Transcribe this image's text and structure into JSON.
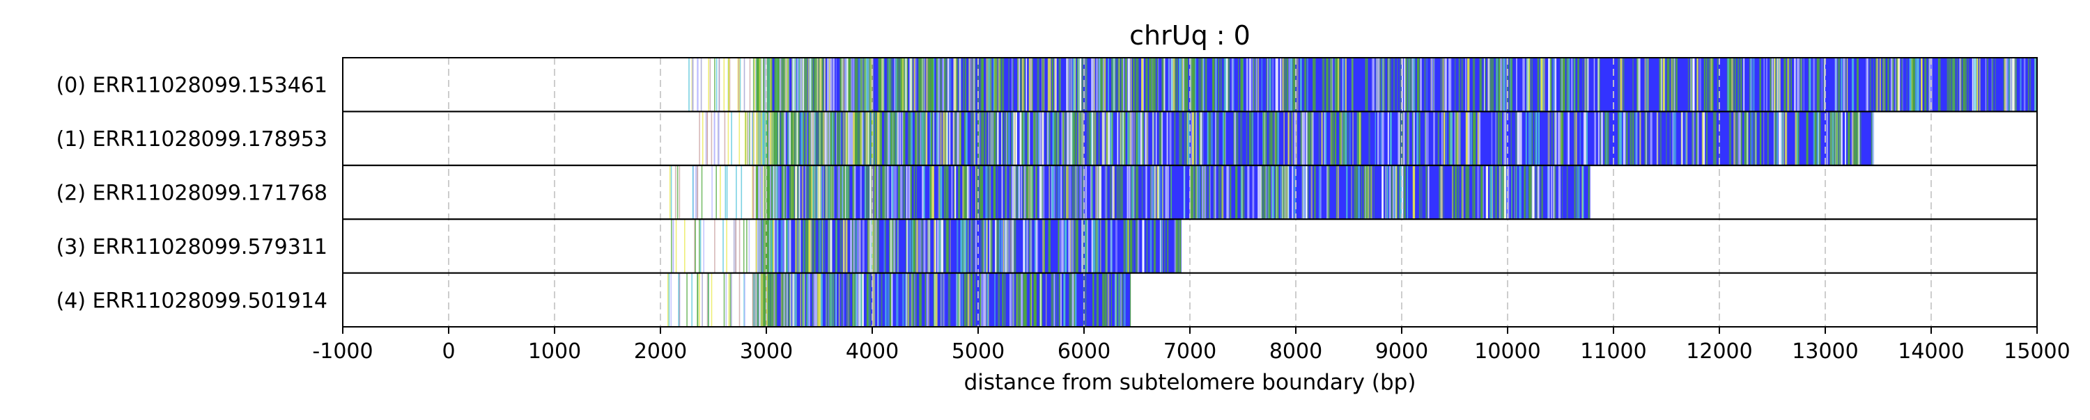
{
  "chart_data": {
    "type": "heatmap",
    "title": "chrUq : 0",
    "xlabel": "distance from subtelomere boundary (bp)",
    "ylabel": "",
    "xlim": [
      -1000,
      15000
    ],
    "xticks": [
      -1000,
      0,
      1000,
      2000,
      3000,
      4000,
      5000,
      6000,
      7000,
      8000,
      9000,
      10000,
      11000,
      12000,
      13000,
      14000,
      15000
    ],
    "xtick_labels": [
      "-1000",
      "0",
      "1000",
      "2000",
      "3000",
      "4000",
      "5000",
      "6000",
      "7000",
      "8000",
      "9000",
      "10000",
      "11000",
      "12000",
      "13000",
      "14000",
      "15000"
    ],
    "grid": "vertical dashed",
    "colors": {
      "main": "#3333ff",
      "green": "#4fa83c",
      "yellow": "#e8e84a",
      "cyan": "#4fc3d9",
      "faint": "#b3b3ff",
      "grid": "#c8c8c8"
    },
    "reads": [
      {
        "label": "(0) ERR11028099.153461",
        "sparse_start": 2200,
        "dense_start": 2900,
        "end": 15000
      },
      {
        "label": "(1) ERR11028099.178953",
        "sparse_start": 2350,
        "dense_start": 2920,
        "end": 13450
      },
      {
        "label": "(2) ERR11028099.171768",
        "sparse_start": 2050,
        "dense_start": 2900,
        "end": 10780
      },
      {
        "label": "(3) ERR11028099.579311",
        "sparse_start": 2050,
        "dense_start": 2900,
        "end": 6920
      },
      {
        "label": "(4) ERR11028099.501914",
        "sparse_start": 2000,
        "dense_start": 2880,
        "end": 6440
      }
    ]
  }
}
